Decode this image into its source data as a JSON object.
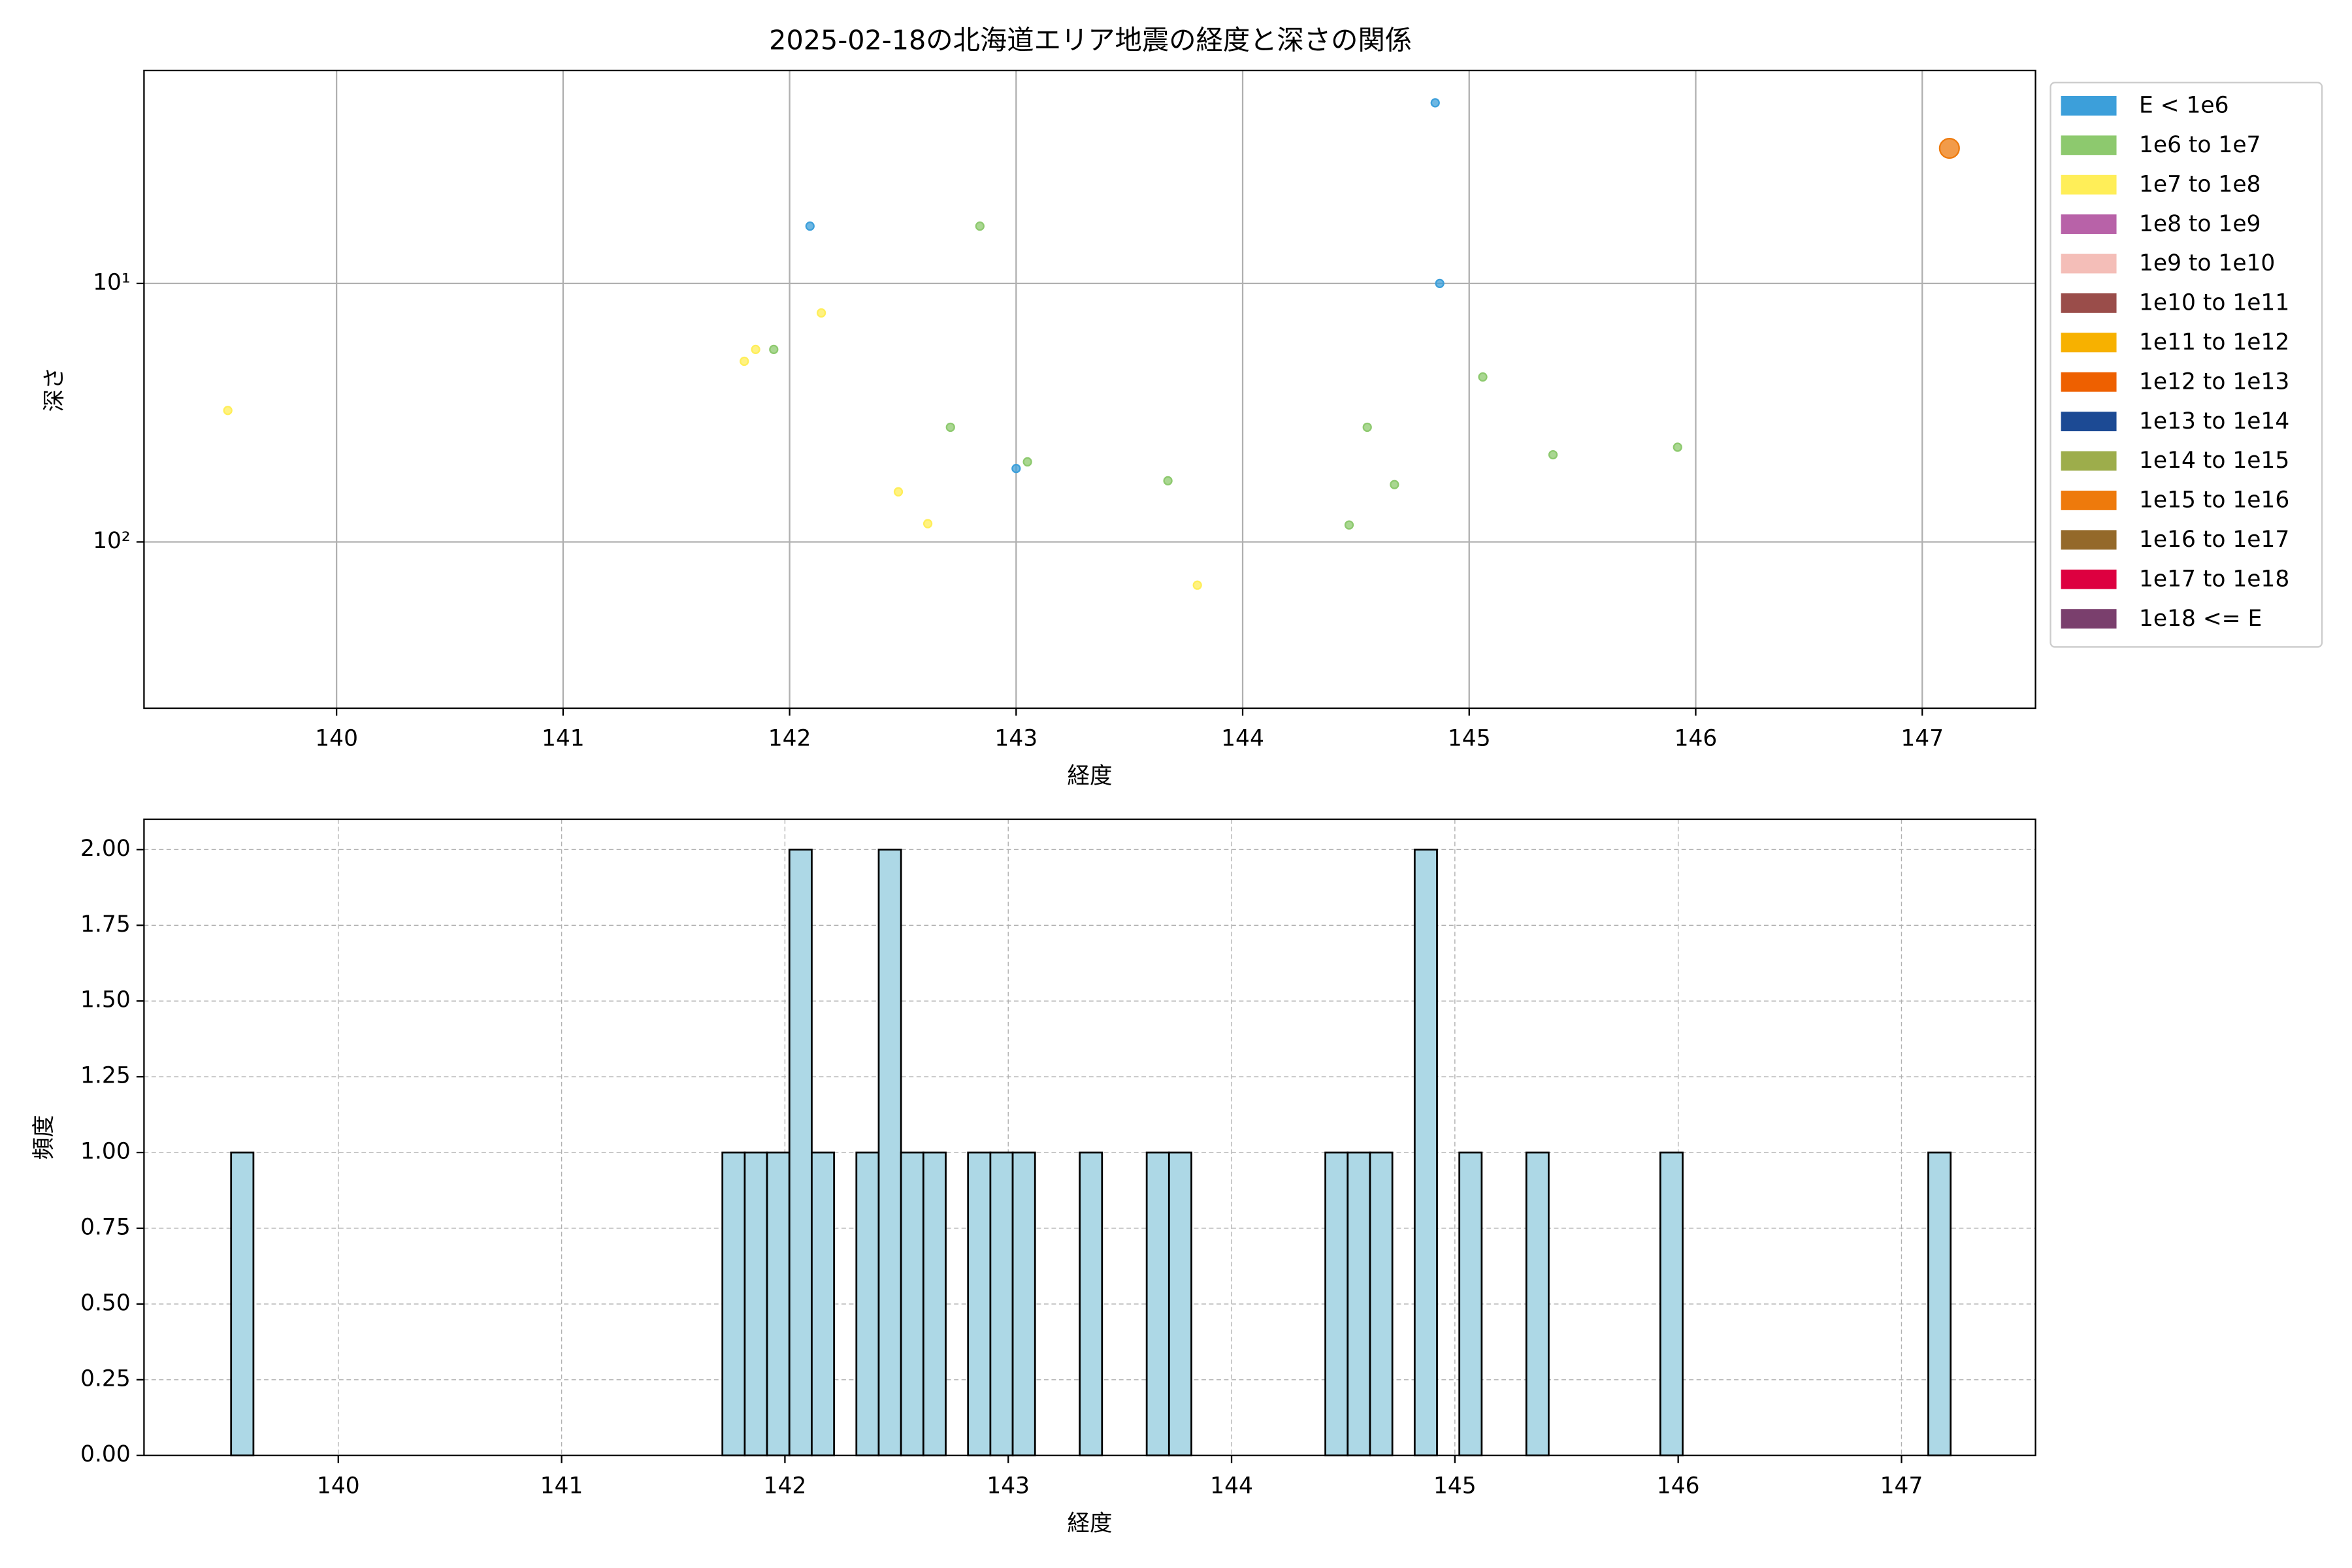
{
  "chart_data": [
    {
      "type": "scatter",
      "title": "2025-02-18の北海道エリア地震の経度と深さの関係",
      "xlabel": "経度",
      "ylabel": "深さ",
      "xlim": [
        139.15,
        147.5
      ],
      "xticks": [
        140,
        141,
        142,
        143,
        144,
        145,
        146,
        147
      ],
      "ylim": [
        440,
        1.5
      ],
      "log_y": true,
      "yticks": [
        {
          "value": 10,
          "label": "10¹"
        },
        {
          "value": 100,
          "label": "10²"
        }
      ],
      "grid": true,
      "legend": "outside-right",
      "series": [
        {
          "name": "E < 1e6",
          "color": "#3c9fda",
          "marker_size": 2.6,
          "x": [
            144.85,
            142.09,
            144.87,
            143.0
          ],
          "values": [
            2.0,
            6,
            10,
            52
          ]
        },
        {
          "name": "1e6 to 1e7",
          "color": "#8dc96e",
          "marker_size": 2.6,
          "x": [
            142.84,
            141.93,
            145.06,
            142.71,
            144.55,
            145.92,
            145.37,
            143.05,
            143.67,
            144.67,
            144.47
          ],
          "values": [
            6,
            18,
            23,
            36,
            36,
            43,
            46,
            49,
            58,
            60,
            86
          ]
        },
        {
          "name": "1e7 to 1e8",
          "color": "#ffee58",
          "marker_size": 2.6,
          "x": [
            142.14,
            141.85,
            141.8,
            139.52,
            142.48,
            142.61,
            143.8
          ],
          "values": [
            13,
            18,
            20,
            31,
            64,
            85,
            147
          ]
        },
        {
          "name": "1e8 to 1e9",
          "color": "#b862a8",
          "marker_size": 3.5,
          "x": [],
          "values": []
        },
        {
          "name": "1e9 to 1e10",
          "color": "#f4beb8",
          "marker_size": 3.5,
          "x": [],
          "values": []
        },
        {
          "name": "1e10 to 1e11",
          "color": "#9a4d4a",
          "marker_size": 4,
          "x": [],
          "values": []
        },
        {
          "name": "1e11 to 1e12",
          "color": "#f7b100",
          "marker_size": 4.5,
          "x": [],
          "values": []
        },
        {
          "name": "1e12 to 1e13",
          "color": "#ee6000",
          "marker_size": 5,
          "x": [],
          "values": []
        },
        {
          "name": "1e13 to 1e14",
          "color": "#1c4a94",
          "marker_size": 5.5,
          "x": [],
          "values": []
        },
        {
          "name": "1e14 to 1e15",
          "color": "#9dad4b",
          "marker_size": 6,
          "x": [],
          "values": []
        },
        {
          "name": "1e15 to 1e16",
          "color": "#ee7a0c",
          "marker_size": 6.5,
          "x": [
            147.12
          ],
          "values": [
            3.0
          ]
        },
        {
          "name": "1e16 to 1e17",
          "color": "#94692a",
          "marker_size": 7,
          "x": [],
          "values": []
        },
        {
          "name": "1e17 to 1e18",
          "color": "#dd0040",
          "marker_size": 7.5,
          "x": [],
          "values": []
        },
        {
          "name": "1e18 <= E",
          "color": "#7a3f6d",
          "marker_size": 8,
          "x": [],
          "values": []
        }
      ]
    },
    {
      "type": "histogram",
      "xlabel": "経度",
      "ylabel": "頻度",
      "xlim": [
        139.13,
        147.6
      ],
      "xticks": [
        140,
        141,
        142,
        143,
        144,
        145,
        146,
        147
      ],
      "ylim": [
        0,
        2.1
      ],
      "yticks": [
        {
          "value": 0,
          "label": "0.00"
        },
        {
          "value": 0.25,
          "label": "0.25"
        },
        {
          "value": 0.5,
          "label": "0.50"
        },
        {
          "value": 0.75,
          "label": "0.75"
        },
        {
          "value": 1,
          "label": "1.00"
        },
        {
          "value": 1.25,
          "label": "1.25"
        },
        {
          "value": 1.5,
          "label": "1.50"
        },
        {
          "value": 1.75,
          "label": "1.75"
        },
        {
          "value": 2,
          "label": "2.00"
        }
      ],
      "grid": true,
      "grid_style": "dashed",
      "color": "#add8e6",
      "edgecolor": "#000000",
      "bins": [
        139.52,
        139.62,
        139.72,
        139.82,
        139.92,
        140.02,
        140.12,
        140.22,
        140.32,
        140.42,
        140.52,
        140.62,
        140.72,
        140.82,
        140.92,
        141.02,
        141.12,
        141.22,
        141.32,
        141.42,
        141.52,
        141.62,
        141.72,
        141.82,
        141.92,
        142.02,
        142.12,
        142.22,
        142.32,
        142.42,
        142.52,
        142.62,
        142.72,
        142.82,
        142.92,
        143.02,
        143.12,
        143.22,
        143.32,
        143.42,
        143.52,
        143.62,
        143.72,
        143.82,
        143.92,
        144.02,
        144.12,
        144.22,
        144.32,
        144.42,
        144.52,
        144.62,
        144.72,
        144.82,
        144.92,
        145.02,
        145.12,
        145.22,
        145.32,
        145.42,
        145.52,
        145.62,
        145.72,
        145.82,
        145.92,
        146.02,
        146.12,
        146.22,
        146.32,
        146.42,
        146.52,
        146.62,
        146.72,
        146.82,
        146.92,
        147.02,
        147.12,
        147.22
      ],
      "values": [
        1,
        0,
        0,
        0,
        0,
        0,
        0,
        0,
        0,
        0,
        0,
        0,
        0,
        0,
        0,
        0,
        0,
        0,
        0,
        0,
        0,
        0,
        1,
        1,
        1,
        2,
        1,
        0,
        1,
        2,
        1,
        1,
        0,
        1,
        1,
        1,
        0,
        0,
        1,
        0,
        0,
        1,
        1,
        0,
        0,
        0,
        0,
        0,
        0,
        1,
        1,
        1,
        0,
        2,
        0,
        1,
        0,
        0,
        1,
        0,
        0,
        0,
        0,
        0,
        1,
        0,
        0,
        0,
        0,
        0,
        0,
        0,
        0,
        0,
        0,
        0,
        1
      ]
    }
  ]
}
